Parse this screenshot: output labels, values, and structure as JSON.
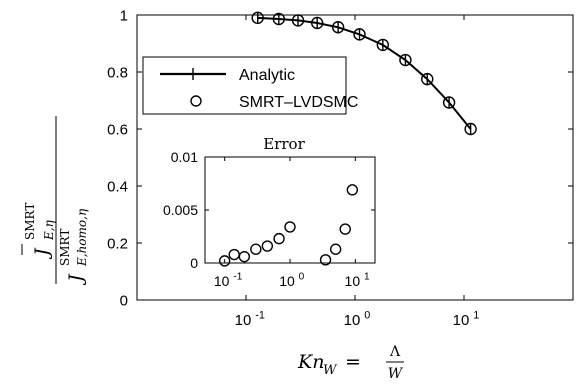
{
  "chart_data": [
    {
      "type": "line",
      "x_scale": "log",
      "xlim": [
        0.01,
        100
      ],
      "ylim": [
        0,
        1
      ],
      "x_ticks": [
        {
          "value": 0.1,
          "base": "10",
          "exp": "-1"
        },
        {
          "value": 1,
          "base": "10",
          "exp": "0"
        },
        {
          "value": 10,
          "base": "10",
          "exp": "1"
        }
      ],
      "y_ticks": [
        {
          "value": 0,
          "label": "0"
        },
        {
          "value": 0.2,
          "label": "0.2"
        },
        {
          "value": 0.4,
          "label": "0.4"
        },
        {
          "value": 0.6,
          "label": "0.6"
        },
        {
          "value": 0.8,
          "label": "0.8"
        },
        {
          "value": 1,
          "label": "1"
        }
      ],
      "xlabel": {
        "lhs": "Kn",
        "sub": "W",
        "eq": " = ",
        "num": "Λ",
        "den": "W"
      },
      "ylabel": {
        "num_main": "J",
        "num_sup": "SMRT",
        "num_sub": "E,η",
        "den_main": "J",
        "den_sup": "SMRT",
        "den_sub": "E,homo,η"
      },
      "legend": {
        "placement": "top-left",
        "entries": [
          "Analytic",
          "SMRT–LVDSMC"
        ]
      },
      "grid": false,
      "series": [
        {
          "name": "Analytic",
          "style": "line-with-plus",
          "x": [
            0.128,
            0.2,
            0.3,
            0.45,
            0.7,
            1.1,
            1.8,
            2.9,
            4.6,
            7.3,
            11.5
          ],
          "y": [
            0.99,
            0.986,
            0.981,
            0.972,
            0.957,
            0.932,
            0.895,
            0.842,
            0.775,
            0.693,
            0.6
          ]
        },
        {
          "name": "SMRT–LVDSMC",
          "style": "circle",
          "x": [
            0.128,
            0.2,
            0.3,
            0.45,
            0.7,
            1.1,
            1.8,
            2.9,
            4.6,
            7.3,
            11.5
          ],
          "y": [
            0.99,
            0.986,
            0.981,
            0.972,
            0.957,
            0.932,
            0.895,
            0.842,
            0.775,
            0.693,
            0.6
          ]
        }
      ]
    },
    {
      "type": "scatter",
      "title": "Error",
      "x_scale": "log",
      "xlim": [
        0.05,
        20
      ],
      "ylim": [
        0,
        0.01
      ],
      "x_ticks": [
        {
          "value": 0.1,
          "base": "10",
          "exp": "-1"
        },
        {
          "value": 1,
          "base": "10",
          "exp": "0"
        },
        {
          "value": 10,
          "base": "10",
          "exp": "1"
        }
      ],
      "y_ticks": [
        {
          "value": 0,
          "label": "0"
        },
        {
          "value": 0.005,
          "label": "0.005"
        },
        {
          "value": 0.01,
          "label": "0.01"
        }
      ],
      "series": [
        {
          "style": "circle",
          "x": [
            0.1,
            0.14,
            0.2,
            0.3,
            0.45,
            0.68,
            1.0,
            3.5,
            5.0,
            7.0,
            9.0
          ],
          "y": [
            0.0002,
            0.0008,
            0.0006,
            0.0013,
            0.0016,
            0.0023,
            0.0034,
            0.0003,
            0.0013,
            0.0032,
            0.0069
          ]
        }
      ]
    }
  ]
}
